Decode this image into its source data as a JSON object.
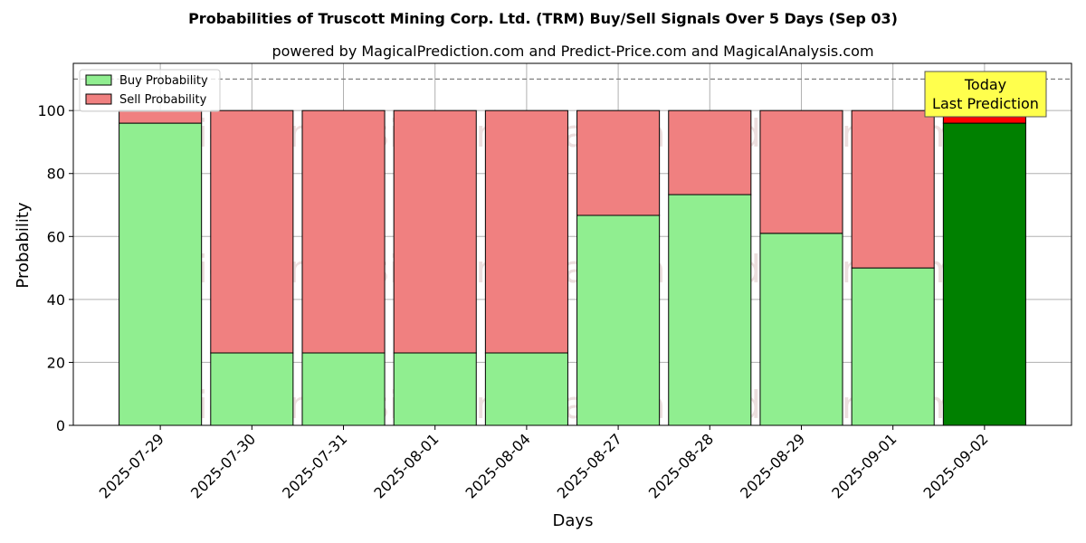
{
  "chart_data": {
    "type": "bar",
    "stacked": true,
    "title": "Probabilities of Truscott Mining Corp. Ltd. (TRM) Buy/Sell Signals Over 5 Days (Sep 03)",
    "subtitle": "powered by MagicalPrediction.com and Predict-Price.com and MagicalAnalysis.com",
    "xlabel": "Days",
    "ylabel": "Probability",
    "ylim": [
      0,
      115
    ],
    "yticks": [
      0,
      20,
      40,
      60,
      80,
      100
    ],
    "grid": true,
    "reference_line": 110,
    "categories": [
      "2025-07-29",
      "2025-07-30",
      "2025-07-31",
      "2025-08-01",
      "2025-08-04",
      "2025-08-27",
      "2025-08-28",
      "2025-08-29",
      "2025-09-01",
      "2025-09-02"
    ],
    "series": [
      {
        "name": "Buy Probability",
        "color": "#90ee90",
        "highlight_color": "#008000",
        "values": [
          96,
          23,
          23,
          23,
          23,
          66.7,
          73.3,
          61,
          50,
          96
        ]
      },
      {
        "name": "Sell Probability",
        "color": "#f08080",
        "highlight_color": "#ff0000",
        "values": [
          4,
          77,
          77,
          77,
          77,
          33.3,
          26.7,
          39,
          50,
          4
        ]
      }
    ],
    "highlight_index": 9,
    "legend_position": "top-left",
    "annotation": {
      "line1": "Today",
      "line2": "Last Prediction",
      "bg": "#ffff4d"
    },
    "watermarks": [
      "MagicalAnalysis.com",
      "MagicalPrediction.com",
      "MagicalAnalysis.com",
      "MagicalPrediction.com",
      "MagicalAnalysis.com",
      "MagicalPrediction.com"
    ]
  }
}
